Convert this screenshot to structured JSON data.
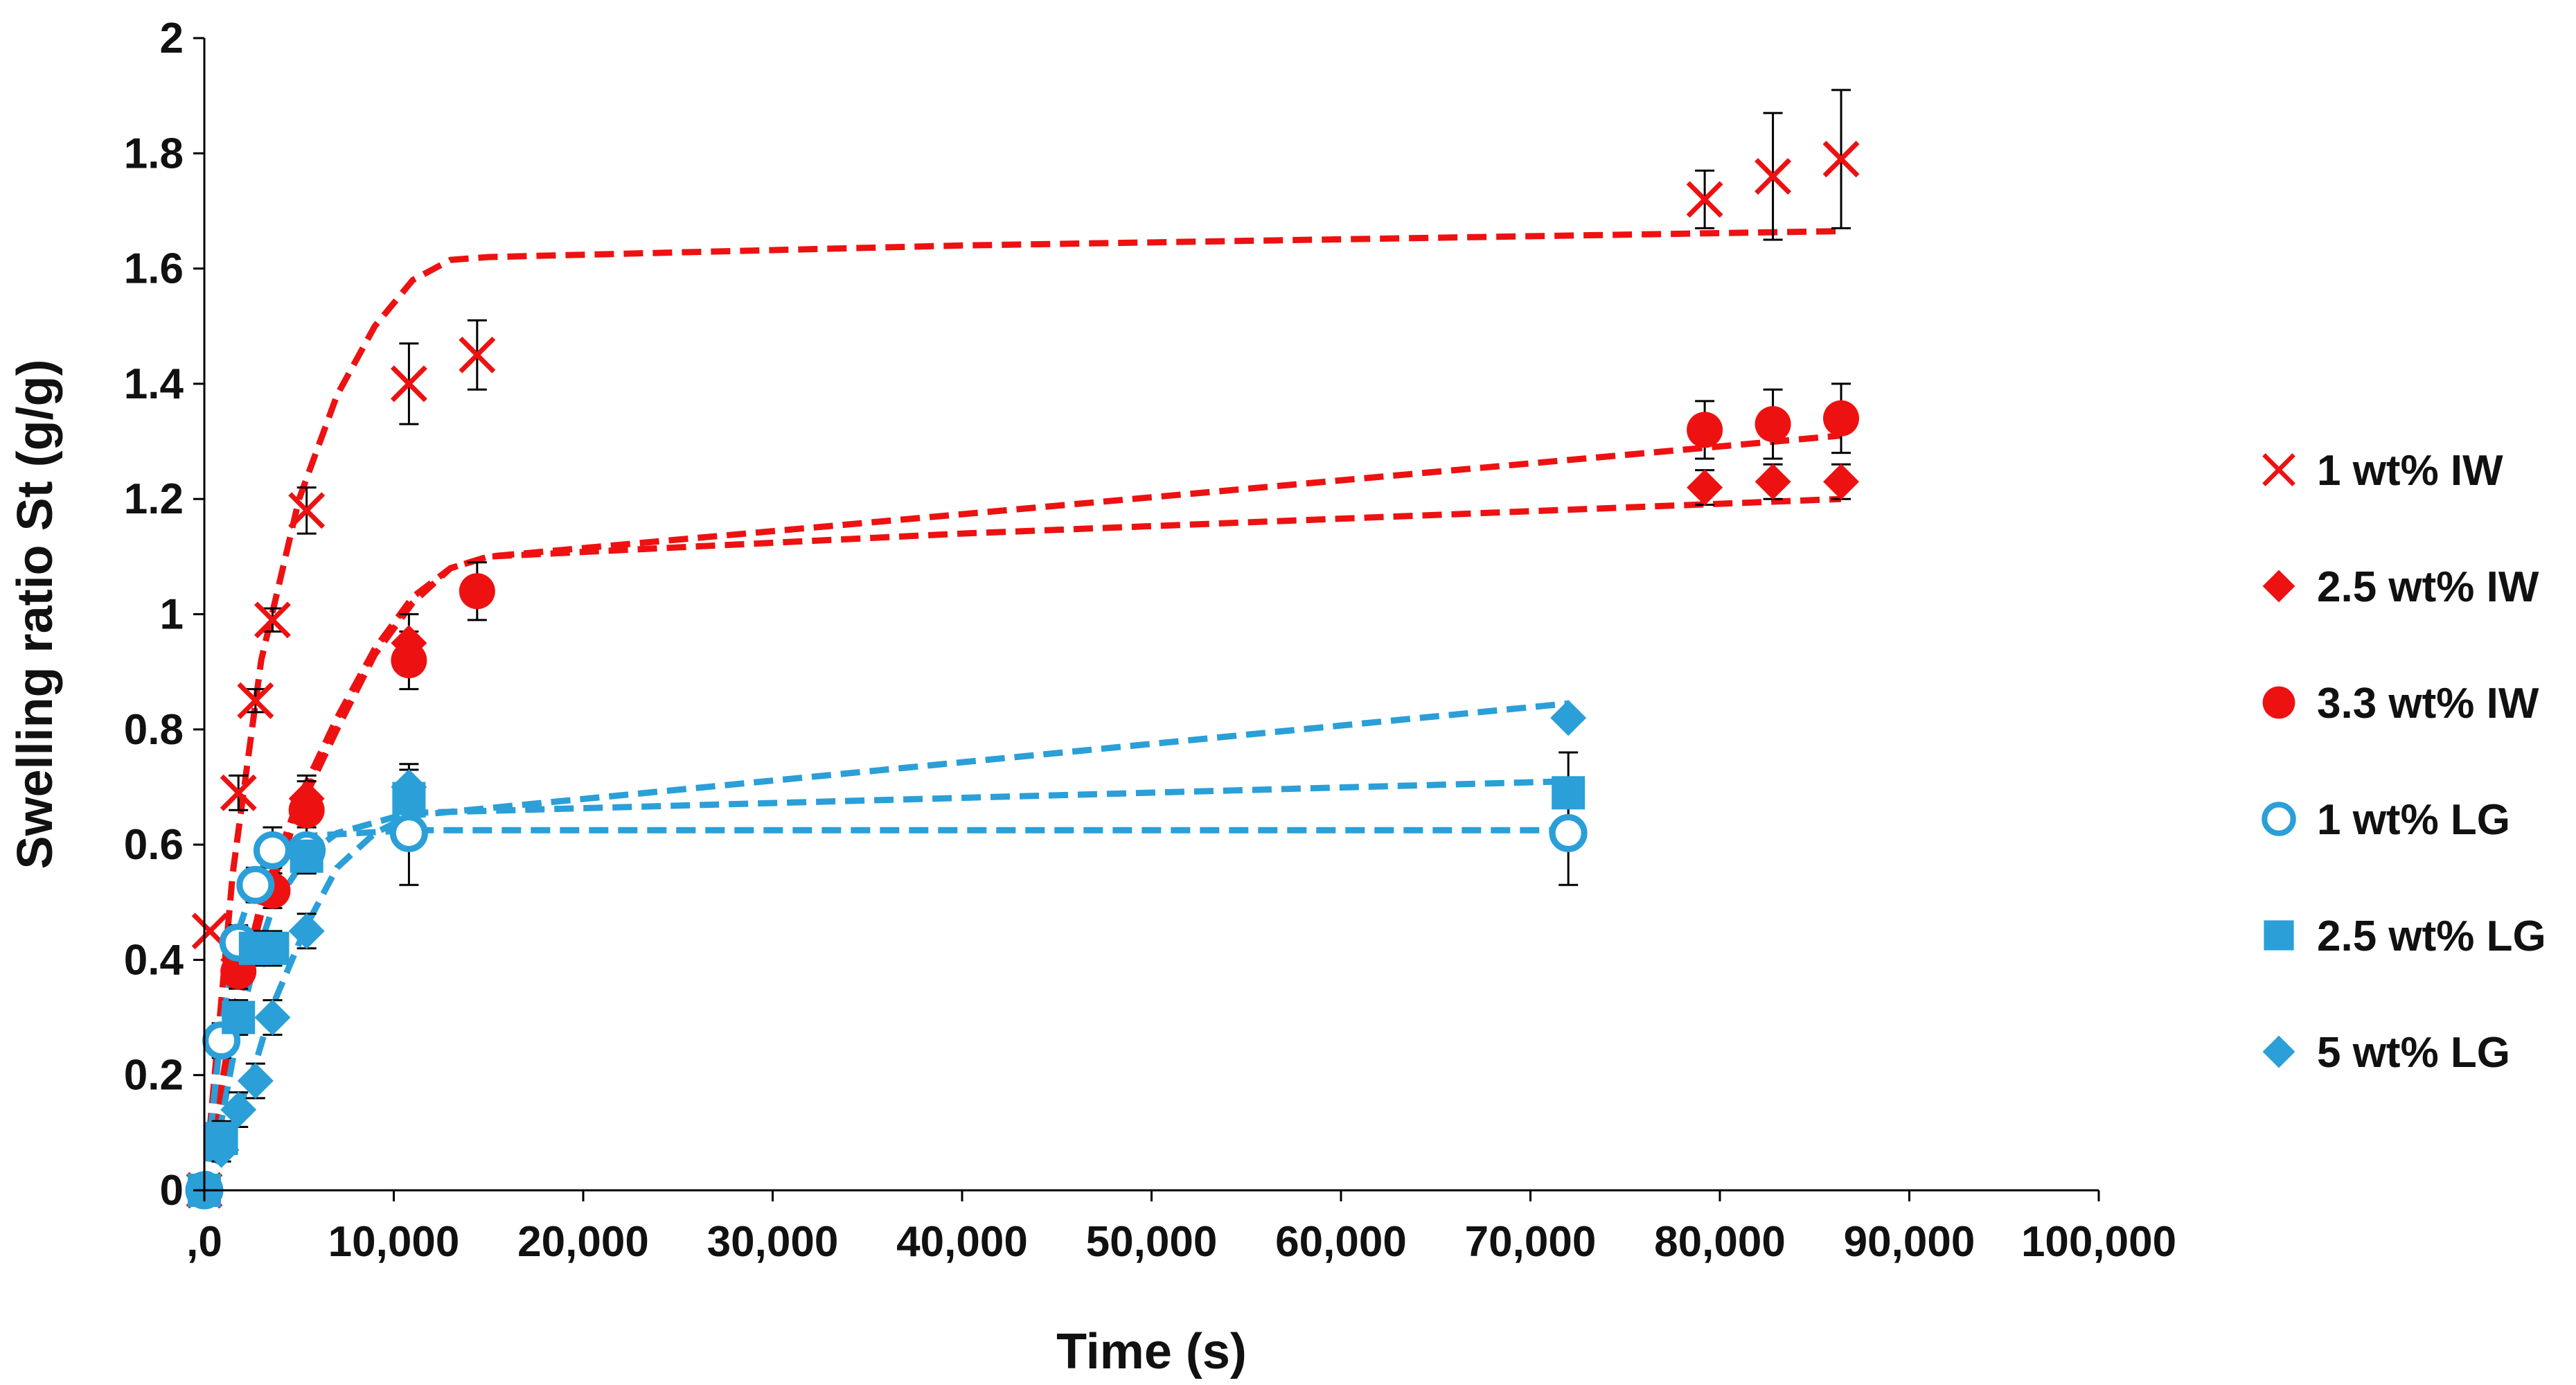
{
  "chart_data": {
    "type": "scatter",
    "title": "",
    "xlabel": "Time (s)",
    "ylabel": "Swelling ratio St (g/g)",
    "xlim": [
      0,
      100000
    ],
    "ylim": [
      0,
      2
    ],
    "grid": false,
    "legend_position": "right",
    "x_tick_labels": [
      ",0",
      "10,000",
      "20,000",
      "30,000",
      "40,000",
      "50,000",
      "60,000",
      "70,000",
      "80,000",
      "90,000",
      "100,000"
    ],
    "y_tick_labels": [
      "0",
      "0.2",
      "0.4",
      "0.6",
      "0.8",
      "1",
      "1.2",
      "1.4",
      "1.6",
      "1.8",
      "2"
    ],
    "colors": {
      "iw": "#ee1111",
      "lg": "#2a9fd8",
      "error_bar": "#000000",
      "axis": "#000000"
    },
    "series": [
      {
        "name": "1 wt% IW",
        "marker": "x",
        "color": "#ee1111",
        "points": [
          {
            "x": 0,
            "y": 0,
            "err": 0
          },
          {
            "x": 300,
            "y": 0.45,
            "err": 0
          },
          {
            "x": 1800,
            "y": 0.69,
            "err": 0.03
          },
          {
            "x": 2700,
            "y": 0.85,
            "err": 0.02
          },
          {
            "x": 3600,
            "y": 0.99,
            "err": 0.02
          },
          {
            "x": 5400,
            "y": 1.18,
            "err": 0.04
          },
          {
            "x": 10800,
            "y": 1.4,
            "err": 0.07
          },
          {
            "x": 14400,
            "y": 1.45,
            "err": 0.06
          },
          {
            "x": 79200,
            "y": 1.72,
            "err": 0.05
          },
          {
            "x": 82800,
            "y": 1.76,
            "err": 0.11
          },
          {
            "x": 86400,
            "y": 1.79,
            "err": 0.12
          }
        ],
        "fit": [
          [
            0,
            0
          ],
          [
            1500,
            0.55
          ],
          [
            3000,
            0.92
          ],
          [
            5000,
            1.2
          ],
          [
            7000,
            1.38
          ],
          [
            9000,
            1.5
          ],
          [
            11000,
            1.58
          ],
          [
            13000,
            1.615
          ],
          [
            15000,
            1.62
          ],
          [
            40000,
            1.64
          ],
          [
            86400,
            1.665
          ]
        ]
      },
      {
        "name": "2.5 wt% IW",
        "marker": "diamond",
        "color": "#ee1111",
        "points": [
          {
            "x": 0,
            "y": 0,
            "err": 0
          },
          {
            "x": 1800,
            "y": 0.4,
            "err": 0.03
          },
          {
            "x": 3600,
            "y": 0.53,
            "err": 0.03
          },
          {
            "x": 5400,
            "y": 0.68,
            "err": 0.04
          },
          {
            "x": 10800,
            "y": 0.95,
            "err": 0.05
          },
          {
            "x": 79200,
            "y": 1.22,
            "err": 0.03
          },
          {
            "x": 82800,
            "y": 1.23,
            "err": 0.03
          },
          {
            "x": 86400,
            "y": 1.23,
            "err": 0.03
          }
        ],
        "fit": [
          [
            0,
            0
          ],
          [
            1500,
            0.3
          ],
          [
            3000,
            0.5
          ],
          [
            5000,
            0.68
          ],
          [
            7000,
            0.82
          ],
          [
            9000,
            0.94
          ],
          [
            11000,
            1.03
          ],
          [
            13000,
            1.08
          ],
          [
            15000,
            1.1
          ],
          [
            40000,
            1.14
          ],
          [
            86400,
            1.2
          ]
        ]
      },
      {
        "name": "3.3 wt% IW",
        "marker": "circle",
        "color": "#ee1111",
        "points": [
          {
            "x": 0,
            "y": 0,
            "err": 0
          },
          {
            "x": 1800,
            "y": 0.38,
            "err": 0.03
          },
          {
            "x": 3600,
            "y": 0.52,
            "err": 0.03
          },
          {
            "x": 5400,
            "y": 0.66,
            "err": 0.05
          },
          {
            "x": 10800,
            "y": 0.92,
            "err": 0.05
          },
          {
            "x": 14400,
            "y": 1.04,
            "err": 0.05
          },
          {
            "x": 79200,
            "y": 1.32,
            "err": 0.05
          },
          {
            "x": 82800,
            "y": 1.33,
            "err": 0.06
          },
          {
            "x": 86400,
            "y": 1.34,
            "err": 0.06
          }
        ],
        "fit": [
          [
            0,
            0
          ],
          [
            1500,
            0.28
          ],
          [
            3000,
            0.48
          ],
          [
            5000,
            0.66
          ],
          [
            7000,
            0.8
          ],
          [
            9000,
            0.93
          ],
          [
            11000,
            1.02
          ],
          [
            13000,
            1.08
          ],
          [
            15000,
            1.1
          ],
          [
            86400,
            1.31
          ]
        ]
      },
      {
        "name": "1 wt% LG",
        "marker": "circle-open",
        "color": "#2a9fd8",
        "points": [
          {
            "x": 0,
            "y": 0,
            "err": 0
          },
          {
            "x": 900,
            "y": 0.26,
            "err": 0.03
          },
          {
            "x": 1800,
            "y": 0.43,
            "err": 0.03
          },
          {
            "x": 2700,
            "y": 0.53,
            "err": 0.03
          },
          {
            "x": 3600,
            "y": 0.59,
            "err": 0.04
          },
          {
            "x": 5400,
            "y": 0.59,
            "err": 0.04
          },
          {
            "x": 10800,
            "y": 0.62,
            "err": 0.09
          },
          {
            "x": 72000,
            "y": 0.62,
            "err": 0.09
          }
        ],
        "fit": [
          [
            0,
            0
          ],
          [
            900,
            0.28
          ],
          [
            1800,
            0.45
          ],
          [
            2700,
            0.54
          ],
          [
            3600,
            0.59
          ],
          [
            5400,
            0.615
          ],
          [
            10800,
            0.625
          ],
          [
            72000,
            0.625
          ]
        ]
      },
      {
        "name": "2.5 wt% LG",
        "marker": "square",
        "color": "#2a9fd8",
        "points": [
          {
            "x": 0,
            "y": 0,
            "err": 0
          },
          {
            "x": 900,
            "y": 0.09,
            "err": 0.03
          },
          {
            "x": 1800,
            "y": 0.3,
            "err": 0.03
          },
          {
            "x": 2700,
            "y": 0.42,
            "err": 0.03
          },
          {
            "x": 3600,
            "y": 0.42,
            "err": 0.03
          },
          {
            "x": 5400,
            "y": 0.58,
            "err": 0.03
          },
          {
            "x": 10800,
            "y": 0.68,
            "err": 0.05
          },
          {
            "x": 72000,
            "y": 0.69,
            "err": 0.07
          }
        ],
        "fit": [
          [
            0,
            0
          ],
          [
            900,
            0.12
          ],
          [
            1800,
            0.28
          ],
          [
            2700,
            0.4
          ],
          [
            3600,
            0.49
          ],
          [
            5400,
            0.58
          ],
          [
            7000,
            0.62
          ],
          [
            10800,
            0.655
          ],
          [
            72000,
            0.71
          ]
        ]
      },
      {
        "name": "5 wt% LG",
        "marker": "diamond",
        "color": "#2a9fd8",
        "points": [
          {
            "x": 0,
            "y": 0,
            "err": 0
          },
          {
            "x": 900,
            "y": 0.07,
            "err": 0.02
          },
          {
            "x": 1800,
            "y": 0.14,
            "err": 0.03
          },
          {
            "x": 2700,
            "y": 0.19,
            "err": 0.03
          },
          {
            "x": 3600,
            "y": 0.3,
            "err": 0.03
          },
          {
            "x": 5400,
            "y": 0.45,
            "err": 0.03
          },
          {
            "x": 10800,
            "y": 0.7,
            "err": 0.04
          },
          {
            "x": 72000,
            "y": 0.82,
            "err": 0
          }
        ],
        "fit": [
          [
            0,
            0
          ],
          [
            900,
            0.06
          ],
          [
            1800,
            0.14
          ],
          [
            2700,
            0.22
          ],
          [
            3600,
            0.32
          ],
          [
            5400,
            0.46
          ],
          [
            7000,
            0.56
          ],
          [
            9000,
            0.62
          ],
          [
            10800,
            0.65
          ],
          [
            72000,
            0.845
          ]
        ]
      }
    ]
  }
}
